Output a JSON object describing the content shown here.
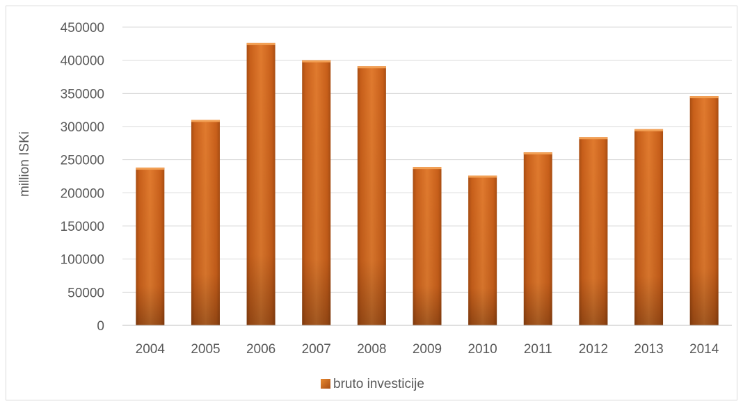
{
  "chart_data": {
    "type": "bar",
    "title": "",
    "xlabel": "",
    "ylabel": "million ISKi",
    "categories": [
      "2004",
      "2005",
      "2006",
      "2007",
      "2008",
      "2009",
      "2010",
      "2011",
      "2012",
      "2013",
      "2014"
    ],
    "series": [
      {
        "name": "bruto investicije",
        "color": "#d0661f",
        "values": [
          238000,
          310000,
          426000,
          400000,
          391000,
          239000,
          226000,
          261000,
          284000,
          296000,
          346000
        ]
      }
    ],
    "ylim": [
      0,
      450000
    ],
    "yticks": [
      "0",
      "50000",
      "100000",
      "150000",
      "200000",
      "250000",
      "300000",
      "350000",
      "400000",
      "450000"
    ],
    "grid": true,
    "legend_position": "bottom"
  }
}
